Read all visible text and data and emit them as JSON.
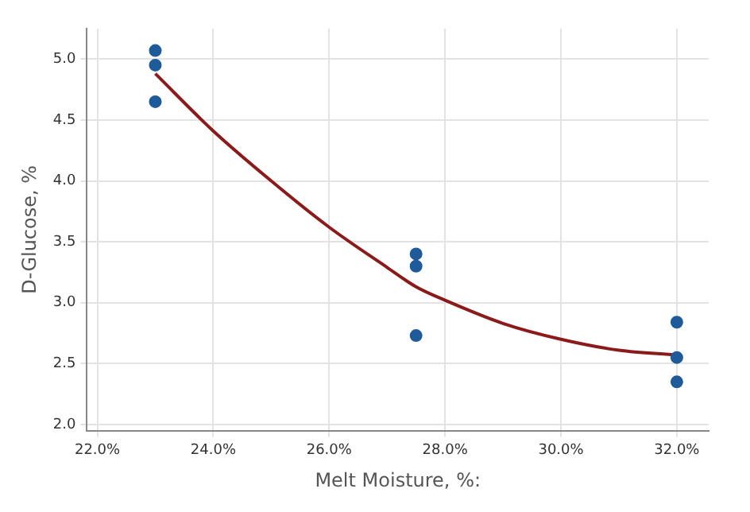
{
  "chart_data": {
    "type": "scatter",
    "xlabel": "Melt Moisture, %:",
    "ylabel": "D-Glucose, %",
    "x": [
      23,
      23,
      23,
      27.5,
      27.5,
      27.5,
      32,
      32,
      32
    ],
    "xlim": [
      21.82,
      32.55
    ],
    "ylim": [
      1.95,
      5.25
    ],
    "xticks": [
      {
        "value": 22,
        "label": "22.0%"
      },
      {
        "value": 24,
        "label": "24.0%"
      },
      {
        "value": 26,
        "label": "26.0%"
      },
      {
        "value": 28,
        "label": "28.0%"
      },
      {
        "value": 30,
        "label": "30.0%"
      },
      {
        "value": 32,
        "label": "32.0%"
      }
    ],
    "yticks": [
      {
        "value": 2,
        "label": "2.0"
      },
      {
        "value": 2.5,
        "label": "2.5"
      },
      {
        "value": 3,
        "label": "3.0"
      },
      {
        "value": 3.5,
        "label": "3.5"
      },
      {
        "value": 4,
        "label": "4.0"
      },
      {
        "value": 4.5,
        "label": "4.5"
      },
      {
        "value": 5,
        "label": "5.0"
      }
    ],
    "grid": true,
    "marker": "circle",
    "series": [
      {
        "color": "#1f5a9a",
        "values": [
          5.07,
          4.95,
          4.65,
          3.4,
          3.3,
          2.73,
          2.84,
          2.55,
          2.35
        ]
      },
      {
        "type": "line",
        "color": "#8b1a1a",
        "x": [
          23,
          24,
          25,
          26,
          27,
          27.5,
          28,
          29,
          30,
          31,
          32
        ],
        "values": [
          4.88,
          4.41,
          4.0,
          3.62,
          3.29,
          3.13,
          3.02,
          2.83,
          2.7,
          2.61,
          2.57
        ],
        "marker": "none",
        "line_style": "solid"
      }
    ]
  }
}
